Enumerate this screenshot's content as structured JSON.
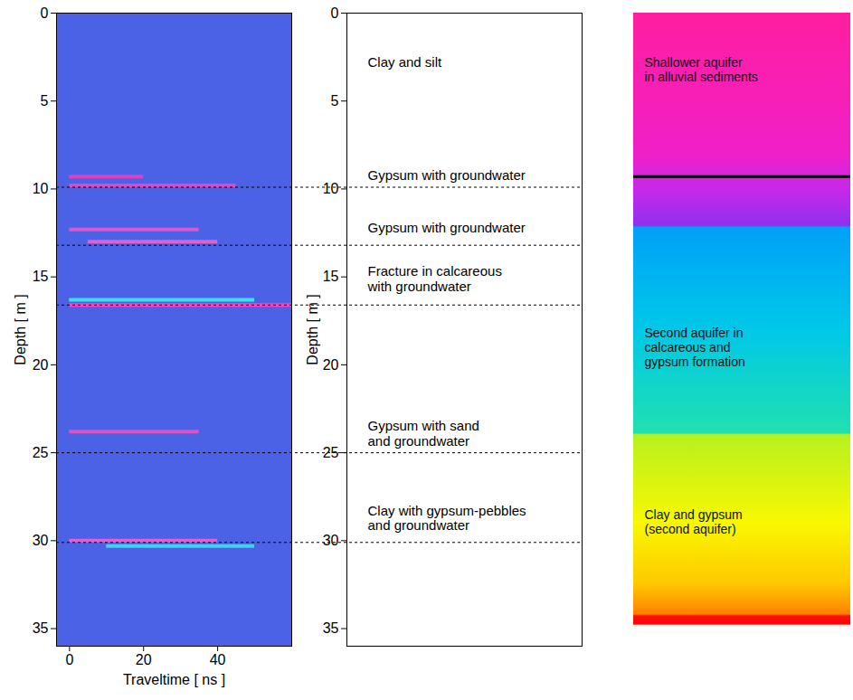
{
  "chart_data": [
    {
      "type": "image",
      "xlabel": "Traveltime [ ns ]",
      "ylabel": "Depth [ m ]",
      "xlim": [
        -3.5,
        60
      ],
      "xticks": [
        0,
        20,
        40
      ],
      "ylim": [
        0,
        36
      ],
      "yticks": [
        0,
        5,
        10,
        15,
        20,
        25,
        30,
        35
      ],
      "color": "#4b62e6",
      "reflections": [
        {
          "depth": 9.3,
          "from": 0,
          "to": 20,
          "color": "#e040c0"
        },
        {
          "depth": 9.8,
          "from": 0,
          "to": 45,
          "color": "#e048c8"
        },
        {
          "depth": 12.3,
          "from": 0,
          "to": 35,
          "color": "#d858d0"
        },
        {
          "depth": 13.0,
          "from": 5,
          "to": 40,
          "color": "#e060d0"
        },
        {
          "depth": 16.3,
          "from": 0,
          "to": 50,
          "color": "#40e0f0"
        },
        {
          "depth": 16.6,
          "from": 0,
          "to": 60,
          "color": "#ff40c0"
        },
        {
          "depth": 23.8,
          "from": 0,
          "to": 35,
          "color": "#e050c0"
        },
        {
          "depth": 30.0,
          "from": 0,
          "to": 40,
          "color": "#e060d0"
        },
        {
          "depth": 30.3,
          "from": 10,
          "to": 50,
          "color": "#40d0f0"
        }
      ]
    },
    {
      "type": "annotated_log",
      "ylabel": "Depth [ m ]",
      "ylim": [
        0,
        36
      ],
      "yticks": [
        0,
        5,
        10,
        15,
        20,
        25,
        30,
        35
      ],
      "tick_labels": "y",
      "interfaces": [
        9.9,
        13.2,
        16.6,
        25.0,
        30.1
      ],
      "labels": [
        {
          "text": "Clay and silt",
          "depth": 2.8
        },
        {
          "text": "Gypsum with groundwater",
          "depth": 9.2
        },
        {
          "text": "Gypsum with groundwater",
          "depth": 12.2
        },
        {
          "text": "Fracture in calcareous\nwith groundwater",
          "depth": 15.1
        },
        {
          "text": "Gypsum with sand\nand groundwater",
          "depth": 23.9
        },
        {
          "text": "Clay with gypsum-pebbles\nand groundwater",
          "depth": 28.7
        }
      ]
    },
    {
      "type": "column",
      "ylim": [
        0,
        36
      ],
      "tick_labels": false,
      "extent": [
        0,
        34.8
      ],
      "boundary": 9.3,
      "color_stops": [
        {
          "depth": 0,
          "color": "#ff1ea0"
        },
        {
          "depth": 8,
          "color": "#f020c8"
        },
        {
          "depth": 10,
          "color": "#c828e8"
        },
        {
          "depth": 12.1,
          "color": "#9030f0"
        },
        {
          "depth": 12.2,
          "color": "#00a0f8"
        },
        {
          "depth": 18,
          "color": "#00c8e8"
        },
        {
          "depth": 23.9,
          "color": "#20e0b0"
        },
        {
          "depth": 24.0,
          "color": "#b8f020"
        },
        {
          "depth": 29,
          "color": "#f8f800"
        },
        {
          "depth": 32.5,
          "color": "#ffc800"
        },
        {
          "depth": 34.2,
          "color": "#ff8000"
        },
        {
          "depth": 34.3,
          "color": "#ff1010"
        },
        {
          "depth": 34.8,
          "color": "#ff0000"
        }
      ],
      "labels": [
        {
          "text": "Shallower aquifer\nin alluvial sediments",
          "depth": 3.2
        },
        {
          "text": "Second aquifer in\ncalcareous and\ngypsum formation",
          "depth": 19.0
        },
        {
          "text": "Clay and gypsum\n(second aquifer)",
          "depth": 28.9
        }
      ]
    }
  ]
}
